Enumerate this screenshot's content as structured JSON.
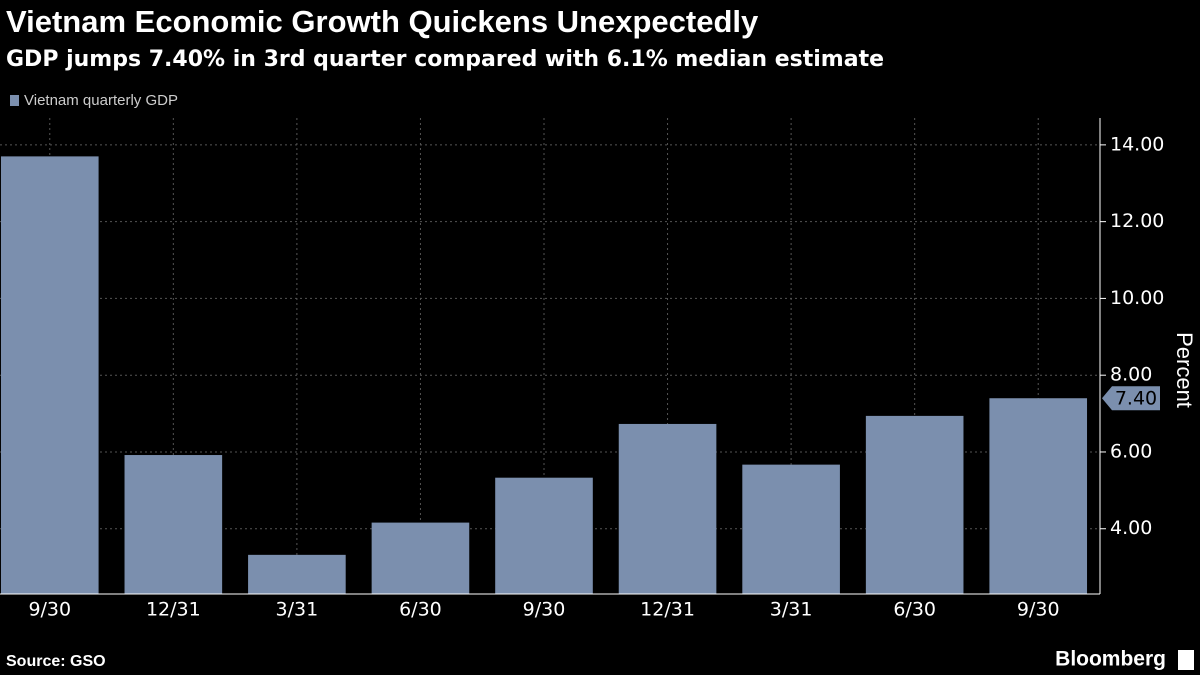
{
  "chart_data": {
    "type": "bar",
    "title": "Vietnam Economic Growth Quickens Unexpectedly",
    "subtitle": "GDP jumps 7.40% in 3rd quarter compared with 6.1% median estimate",
    "legend": "Vietnam quarterly GDP",
    "y_label": "Percent",
    "source": "Source: GSO",
    "brand": "Bloomberg",
    "categories": [
      "9/30",
      "12/31",
      "3/31",
      "6/30",
      "9/30",
      "12/31",
      "3/31",
      "6/30",
      "9/30"
    ],
    "values": [
      13.7,
      5.92,
      3.32,
      4.16,
      5.33,
      6.73,
      5.67,
      6.94,
      7.4
    ],
    "value_labels": [
      null,
      null,
      null,
      null,
      null,
      null,
      null,
      null,
      "7.40"
    ],
    "color": "#7b8fae",
    "ylim": [
      2.3,
      14.7
    ],
    "yticks": [
      {
        "value": 4,
        "label": "4.00"
      },
      {
        "value": 6,
        "label": "6.00"
      },
      {
        "value": 8,
        "label": "8.00"
      },
      {
        "value": 10,
        "label": "10.00"
      },
      {
        "value": 12,
        "label": "12.00"
      },
      {
        "value": 14,
        "label": "14.00"
      }
    ],
    "grid": true
  }
}
